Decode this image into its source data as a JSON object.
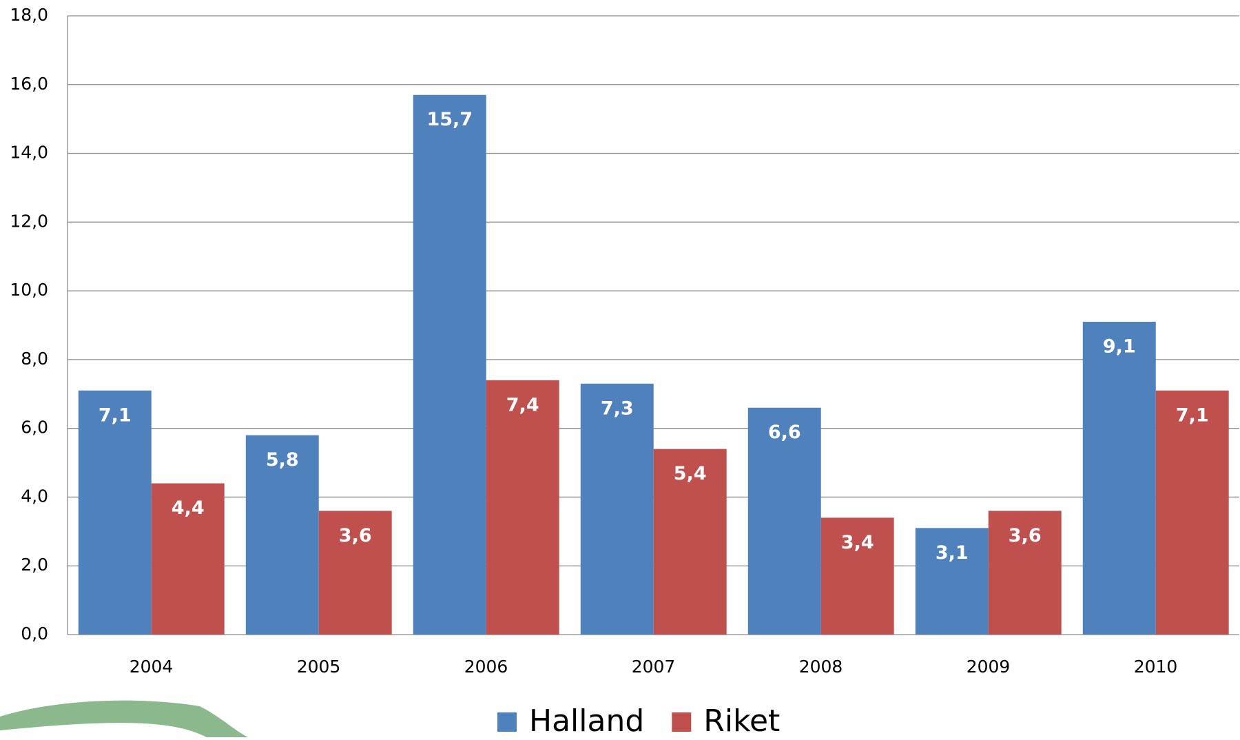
{
  "chart_data": {
    "type": "bar",
    "categories": [
      "2004",
      "2005",
      "2006",
      "2007",
      "2008",
      "2009",
      "2010"
    ],
    "series": [
      {
        "name": "Halland",
        "color": "#4f81bd",
        "values": [
          7.1,
          5.8,
          15.7,
          7.3,
          6.6,
          3.1,
          9.1
        ],
        "value_labels": [
          "7,1",
          "5,8",
          "15,7",
          "7,3",
          "6,6",
          "3,1",
          "9,1"
        ]
      },
      {
        "name": "Riket",
        "color": "#c0504d",
        "values": [
          4.4,
          3.6,
          7.4,
          5.4,
          3.4,
          3.6,
          7.1
        ],
        "value_labels": [
          "4,4",
          "3,6",
          "7,4",
          "5,4",
          "3,4",
          "3,6",
          "7,1"
        ]
      }
    ],
    "ylim": [
      0,
      18
    ],
    "yticks": [
      {
        "value": 0,
        "label": "0,0"
      },
      {
        "value": 2,
        "label": "2,0"
      },
      {
        "value": 4,
        "label": "4,0"
      },
      {
        "value": 6,
        "label": "6,0"
      },
      {
        "value": 8,
        "label": "8,0"
      },
      {
        "value": 10,
        "label": "10,0"
      },
      {
        "value": 12,
        "label": "12,0"
      },
      {
        "value": 14,
        "label": "14,0"
      },
      {
        "value": 16,
        "label": "16,0"
      },
      {
        "value": 18,
        "label": "18,0"
      }
    ],
    "grid": true,
    "legend": "bottom"
  }
}
